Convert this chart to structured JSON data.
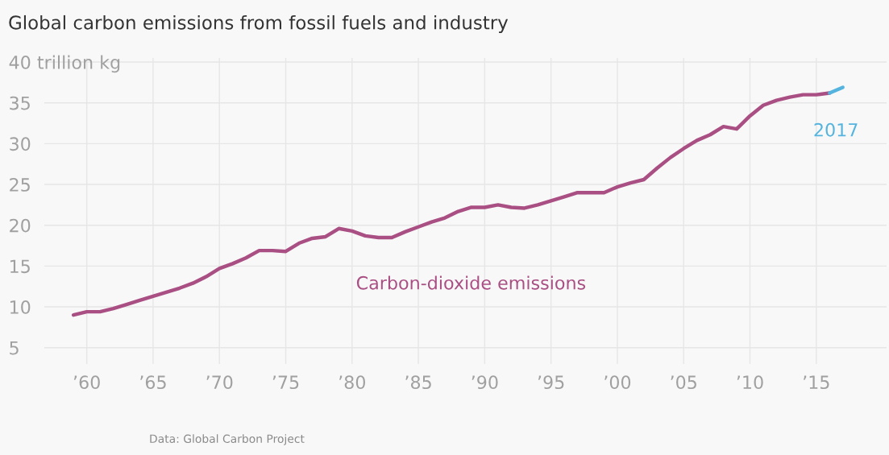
{
  "chart_data": {
    "type": "line",
    "title": "Global carbon emissions from fossil fuels and industry",
    "series": [
      {
        "name": "Carbon-dioxide emissions",
        "color": "#a94f83",
        "x": [
          1959,
          1960,
          1961,
          1962,
          1963,
          1964,
          1965,
          1966,
          1967,
          1968,
          1969,
          1970,
          1971,
          1972,
          1973,
          1974,
          1975,
          1976,
          1977,
          1978,
          1979,
          1980,
          1981,
          1982,
          1983,
          1984,
          1985,
          1986,
          1987,
          1988,
          1989,
          1990,
          1991,
          1992,
          1993,
          1994,
          1995,
          1996,
          1997,
          1998,
          1999,
          2000,
          2001,
          2002,
          2003,
          2004,
          2005,
          2006,
          2007,
          2008,
          2009,
          2010,
          2011,
          2012,
          2013,
          2014,
          2015,
          2016
        ],
        "values": [
          9.0,
          9.4,
          9.4,
          9.8,
          10.3,
          10.8,
          11.3,
          11.8,
          12.3,
          12.9,
          13.7,
          14.7,
          15.3,
          16.0,
          16.9,
          16.9,
          16.8,
          17.8,
          18.4,
          18.6,
          19.6,
          19.3,
          18.7,
          18.5,
          18.5,
          19.2,
          19.8,
          20.4,
          20.9,
          21.7,
          22.2,
          22.2,
          22.5,
          22.2,
          22.1,
          22.5,
          23.0,
          23.5,
          24.0,
          24.0,
          24.0,
          24.7,
          25.2,
          25.6,
          27.0,
          28.3,
          29.4,
          30.4,
          31.1,
          32.1,
          31.8,
          33.4,
          34.7,
          35.3,
          35.7,
          36.0,
          36.0,
          36.2
        ]
      },
      {
        "name": "2017",
        "color": "#55b4de",
        "x": [
          2016,
          2017
        ],
        "values": [
          36.2,
          36.9
        ]
      }
    ],
    "xlim": [
      1956.8,
      2020.3
    ],
    "xticks": [
      {
        "value": 1960,
        "label": "’60"
      },
      {
        "value": 1965,
        "label": "’65"
      },
      {
        "value": 1970,
        "label": "’70"
      },
      {
        "value": 1975,
        "label": "’75"
      },
      {
        "value": 1980,
        "label": "’80"
      },
      {
        "value": 1985,
        "label": "’85"
      },
      {
        "value": 1990,
        "label": "’90"
      },
      {
        "value": 1995,
        "label": "’95"
      },
      {
        "value": 2000,
        "label": "’00"
      },
      {
        "value": 2005,
        "label": "’05"
      },
      {
        "value": 2010,
        "label": "’10"
      },
      {
        "value": 2015,
        "label": "’15"
      }
    ],
    "ylim": [
      3,
      40.5
    ],
    "yticks": [
      5,
      10,
      15,
      20,
      25,
      30,
      35,
      {
        "value": 40,
        "label": "40 trillion kg"
      }
    ],
    "grid": true,
    "annotations": [
      "Data: Global Carbon Project"
    ]
  }
}
